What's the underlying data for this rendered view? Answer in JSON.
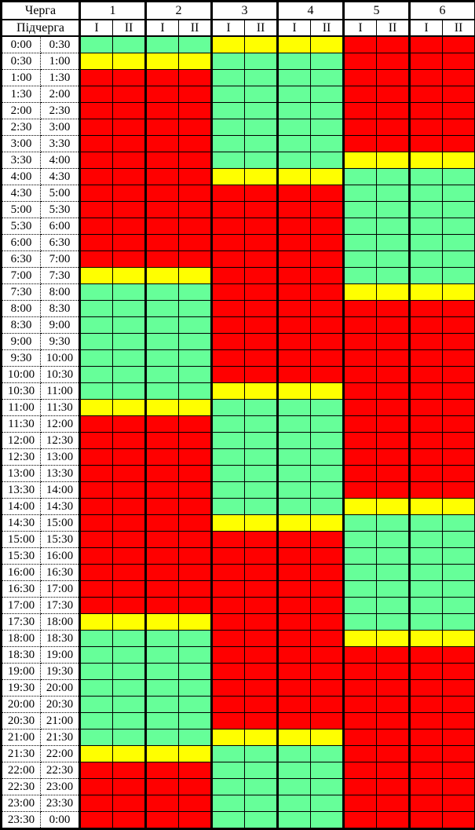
{
  "chart_data": {
    "type": "heatmap",
    "title": "",
    "columns": {
      "queue_label": "Черга",
      "subqueue_label": "Підчерга",
      "queues": [
        "1",
        "2",
        "3",
        "4",
        "5",
        "6"
      ],
      "subqueues": [
        "I",
        "II"
      ]
    },
    "state_colors": {
      "G": "#66FF99",
      "Y": "#FFFF00",
      "R": "#FF0000"
    },
    "state_names": {
      "G": "green",
      "Y": "yellow",
      "R": "red"
    },
    "time_rows": [
      {
        "start": "0:00",
        "end": "0:30",
        "states": "GGGGYYYYRRRR"
      },
      {
        "start": "0:30",
        "end": "1:00",
        "states": "YYYYGGGGRRRR"
      },
      {
        "start": "1:00",
        "end": "1:30",
        "states": "RRRRGGGGRRRR"
      },
      {
        "start": "1:30",
        "end": "2:00",
        "states": "RRRRGGGGRRRR"
      },
      {
        "start": "2:00",
        "end": "2:30",
        "states": "RRRRGGGGRRRR"
      },
      {
        "start": "2:30",
        "end": "3:00",
        "states": "RRRRGGGGRRRR"
      },
      {
        "start": "3:00",
        "end": "3:30",
        "states": "RRRRGGGGRRRR"
      },
      {
        "start": "3:30",
        "end": "4:00",
        "states": "RRRRGGGGYYYY"
      },
      {
        "start": "4:00",
        "end": "4:30",
        "states": "RRRRYYYYGGGG"
      },
      {
        "start": "4:30",
        "end": "5:00",
        "states": "RRRRRRRRGGGG"
      },
      {
        "start": "5:00",
        "end": "5:30",
        "states": "RRRRRRRRGGGG"
      },
      {
        "start": "5:30",
        "end": "6:00",
        "states": "RRRRRRRRGGGG"
      },
      {
        "start": "6:00",
        "end": "6:30",
        "states": "RRRRRRRRGGGG"
      },
      {
        "start": "6:30",
        "end": "7:00",
        "states": "RRRRRRRRGGGG"
      },
      {
        "start": "7:00",
        "end": "7:30",
        "states": "YYYYRRRRGGGG"
      },
      {
        "start": "7:30",
        "end": "8:00",
        "states": "GGGGRRRRYYYY"
      },
      {
        "start": "8:00",
        "end": "8:30",
        "states": "GGGGRRRRRRRR"
      },
      {
        "start": "8:30",
        "end": "9:00",
        "states": "GGGGRRRRRRRR"
      },
      {
        "start": "9:00",
        "end": "9:30",
        "states": "GGGGRRRRRRRR"
      },
      {
        "start": "9:30",
        "end": "10:00",
        "states": "GGGGRRRRRRRR"
      },
      {
        "start": "10:00",
        "end": "10:30",
        "states": "GGGGRRRRRRRR"
      },
      {
        "start": "10:30",
        "end": "11:00",
        "states": "GGGGYYYYRRRR"
      },
      {
        "start": "11:00",
        "end": "11:30",
        "states": "YYYYGGGGRRRR"
      },
      {
        "start": "11:30",
        "end": "12:00",
        "states": "RRRRGGGGRRRR"
      },
      {
        "start": "12:00",
        "end": "12:30",
        "states": "RRRRGGGGRRRR"
      },
      {
        "start": "12:30",
        "end": "13:00",
        "states": "RRRRGGGGRRRR"
      },
      {
        "start": "13:00",
        "end": "13:30",
        "states": "RRRRGGGGRRRR"
      },
      {
        "start": "13:30",
        "end": "14:00",
        "states": "RRRRGGGGRRRR"
      },
      {
        "start": "14:00",
        "end": "14:30",
        "states": "RRRRGGGGYYYY"
      },
      {
        "start": "14:30",
        "end": "15:00",
        "states": "RRRRYYYYGGGG"
      },
      {
        "start": "15:00",
        "end": "15:30",
        "states": "RRRRRRRRGGGG"
      },
      {
        "start": "15:30",
        "end": "16:00",
        "states": "RRRRRRRRGGGG"
      },
      {
        "start": "16:00",
        "end": "16:30",
        "states": "RRRRRRRRGGGG"
      },
      {
        "start": "16:30",
        "end": "17:00",
        "states": "RRRRRRRRGGGG"
      },
      {
        "start": "17:00",
        "end": "17:30",
        "states": "RRRRRRRRGGGG"
      },
      {
        "start": "17:30",
        "end": "18:00",
        "states": "YYYYRRRRGGGG"
      },
      {
        "start": "18:00",
        "end": "18:30",
        "states": "GGGGRRRRYYYY"
      },
      {
        "start": "18:30",
        "end": "19:00",
        "states": "GGGGRRRRRRRR"
      },
      {
        "start": "19:00",
        "end": "19:30",
        "states": "GGGGRRRRRRRR"
      },
      {
        "start": "19:30",
        "end": "20:00",
        "states": "GGGGRRRRRRRR"
      },
      {
        "start": "20:00",
        "end": "20:30",
        "states": "GGGGRRRRRRRR"
      },
      {
        "start": "20:30",
        "end": "21:00",
        "states": "GGGGRRRRRRRR"
      },
      {
        "start": "21:00",
        "end": "21:30",
        "states": "GGGGYYYYRRRR"
      },
      {
        "start": "21:30",
        "end": "22:00",
        "states": "YYYYGGGGRRRR"
      },
      {
        "start": "22:00",
        "end": "22:30",
        "states": "RRRRGGGGRRRR"
      },
      {
        "start": "22:30",
        "end": "23:00",
        "states": "RRRRGGGGRRRR"
      },
      {
        "start": "23:00",
        "end": "23:30",
        "states": "RRRRGGGGRRRR"
      },
      {
        "start": "23:30",
        "end": "0:00",
        "states": "RRRRGGGGRRRR"
      }
    ]
  }
}
